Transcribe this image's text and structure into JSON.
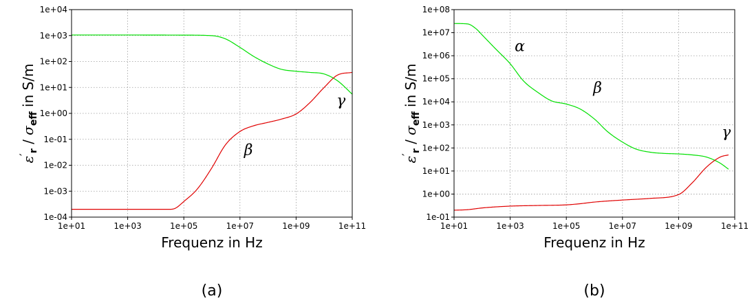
{
  "chart_data": [
    {
      "type": "line",
      "caption": "(a)",
      "xlabel": "Frequenz in Hz",
      "ylabel_parts": [
        "ε",
        "′",
        "r",
        " / ",
        "σ",
        "eff",
        " in S/m"
      ],
      "xscale": "log",
      "yscale": "log",
      "xlim": [
        10,
        100000000000.0
      ],
      "ylim": [
        0.0001,
        10000.0
      ],
      "xticks": [
        {
          "v": 10,
          "label": "1e+01"
        },
        {
          "v": 1000,
          "label": "1e+03"
        },
        {
          "v": 100000,
          "label": "1e+05"
        },
        {
          "v": 10000000,
          "label": "1e+07"
        },
        {
          "v": 1000000000,
          "label": "1e+09"
        },
        {
          "v": 100000000000,
          "label": "1e+11"
        }
      ],
      "yticks": [
        {
          "v": 0.0001,
          "label": "1e-04"
        },
        {
          "v": 0.001,
          "label": "1e-03"
        },
        {
          "v": 0.01,
          "label": "1e-02"
        },
        {
          "v": 0.1,
          "label": "1e-01"
        },
        {
          "v": 1,
          "label": "1e+00"
        },
        {
          "v": 10,
          "label": "1e+01"
        },
        {
          "v": 100,
          "label": "1e+02"
        },
        {
          "v": 1000,
          "label": "1e+03"
        },
        {
          "v": 10000,
          "label": "1e+04"
        }
      ],
      "grid": true,
      "series": [
        {
          "color": "#00e000",
          "x": [
            10,
            1000.0,
            100000.0,
            1000000.0,
            3000000.0,
            10000000.0,
            30000000.0,
            100000000.0,
            300000000.0,
            1000000000.0,
            3000000000.0,
            10000000000.0,
            30000000000.0,
            100000000000.0
          ],
          "y": [
            1050,
            1050,
            1040,
            990,
            750,
            350,
            160,
            80,
            50,
            42,
            38,
            33,
            18,
            5.5
          ]
        },
        {
          "color": "#e00000",
          "x": [
            10,
            1000.0,
            30000.0,
            50000.0,
            100000.0,
            300000.0,
            1000000.0,
            3000000.0,
            10000000.0,
            30000000.0,
            100000000.0,
            300000000.0,
            1000000000.0,
            3000000000.0,
            10000000000.0,
            30000000000.0,
            100000000000.0
          ],
          "y": [
            0.0002,
            0.0002,
            0.0002,
            0.00022,
            0.0004,
            0.0012,
            0.008,
            0.06,
            0.2,
            0.33,
            0.45,
            0.6,
            0.95,
            2.5,
            10,
            30,
            38
          ]
        }
      ],
      "annotations": [
        {
          "text": "β",
          "x": 20000000.0,
          "y": 0.025
        },
        {
          "text": "γ",
          "x": 40000000000.0,
          "y": 2.0
        }
      ]
    },
    {
      "type": "line",
      "caption": "(b)",
      "xlabel": "Frequenz in Hz",
      "ylabel_parts": [
        "ε",
        "′",
        "r",
        " / ",
        "σ",
        "eff",
        " in S/m"
      ],
      "xscale": "log",
      "yscale": "log",
      "xlim": [
        10,
        100000000000.0
      ],
      "ylim": [
        0.1,
        100000000.0
      ],
      "xticks": [
        {
          "v": 10,
          "label": "1e+01"
        },
        {
          "v": 1000,
          "label": "1e+03"
        },
        {
          "v": 100000,
          "label": "1e+05"
        },
        {
          "v": 10000000,
          "label": "1e+07"
        },
        {
          "v": 1000000000,
          "label": "1e+09"
        },
        {
          "v": 100000000000,
          "label": "1e+11"
        }
      ],
      "yticks": [
        {
          "v": 0.1,
          "label": "1e-01"
        },
        {
          "v": 1,
          "label": "1e+00"
        },
        {
          "v": 10,
          "label": "1e+01"
        },
        {
          "v": 100,
          "label": "1e+02"
        },
        {
          "v": 1000,
          "label": "1e+03"
        },
        {
          "v": 10000,
          "label": "1e+04"
        },
        {
          "v": 100000,
          "label": "1e+05"
        },
        {
          "v": 1000000,
          "label": "1e+06"
        },
        {
          "v": 10000000,
          "label": "1e+07"
        },
        {
          "v": 100000000,
          "label": "1e+08"
        }
      ],
      "grid": true,
      "series": [
        {
          "color": "#00e000",
          "x": [
            10,
            30,
            60,
            100,
            300,
            1000.0,
            3000.0,
            10000.0,
            30000.0,
            100000.0,
            300000.0,
            1000000.0,
            3000000.0,
            10000000.0,
            30000000.0,
            100000000.0,
            300000000.0,
            1000000000.0,
            3000000000.0,
            10000000000.0,
            30000000000.0,
            60000000000.0
          ],
          "y": [
            25000000.0,
            24000000.0,
            15000000.0,
            8000000.0,
            2000000.0,
            450000.0,
            80000.0,
            25000.0,
            11000.0,
            8000,
            5000,
            1800,
            500,
            180,
            90,
            65,
            58,
            55,
            50,
            40,
            22,
            12
          ]
        },
        {
          "color": "#e00000",
          "x": [
            10,
            30,
            100,
            1000.0,
            10000.0,
            100000.0,
            300000.0,
            1000000.0,
            10000000.0,
            100000000.0,
            1000000000.0,
            3000000000.0,
            10000000000.0,
            30000000000.0,
            60000000000.0
          ],
          "y": [
            0.2,
            0.21,
            0.25,
            0.3,
            0.32,
            0.34,
            0.38,
            0.45,
            0.55,
            0.65,
            0.95,
            3,
            15,
            40,
            50
          ]
        }
      ],
      "annotations": [
        {
          "text": "α",
          "x": 2200,
          "y": 1600000.0
        },
        {
          "text": "β",
          "x": 1300000.0,
          "y": 25000.0
        },
        {
          "text": "γ",
          "x": 50000000000.0,
          "y": 300
        }
      ]
    }
  ]
}
